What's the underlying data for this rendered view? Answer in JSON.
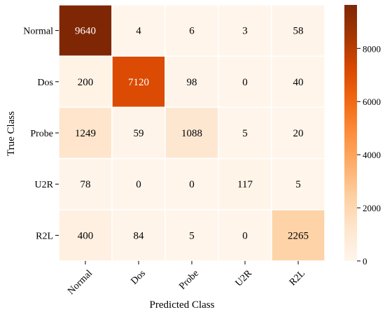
{
  "chart_data": {
    "type": "heatmap",
    "title": "",
    "xlabel": "Predicted Class",
    "ylabel": "True Class",
    "x_categories": [
      "Normal",
      "Dos",
      "Probe",
      "U2R",
      "R2L"
    ],
    "y_categories": [
      "Normal",
      "Dos",
      "Probe",
      "U2R",
      "R2L"
    ],
    "values": [
      [
        9640,
        4,
        6,
        3,
        58
      ],
      [
        200,
        7120,
        98,
        0,
        40
      ],
      [
        1249,
        59,
        1088,
        5,
        20
      ],
      [
        78,
        0,
        0,
        117,
        5
      ],
      [
        400,
        84,
        5,
        0,
        2265
      ]
    ],
    "colormap": "Oranges",
    "color_range": [
      0,
      9640
    ],
    "colorbar": {
      "ticks": [
        0,
        2000,
        4000,
        6000,
        8000
      ],
      "tick_labels": [
        "0",
        "2000",
        "4000",
        "6000",
        "8000"
      ]
    },
    "colors": {
      "low": "#fff5eb",
      "high": "#7f2704",
      "grid": "#ffffff"
    }
  }
}
